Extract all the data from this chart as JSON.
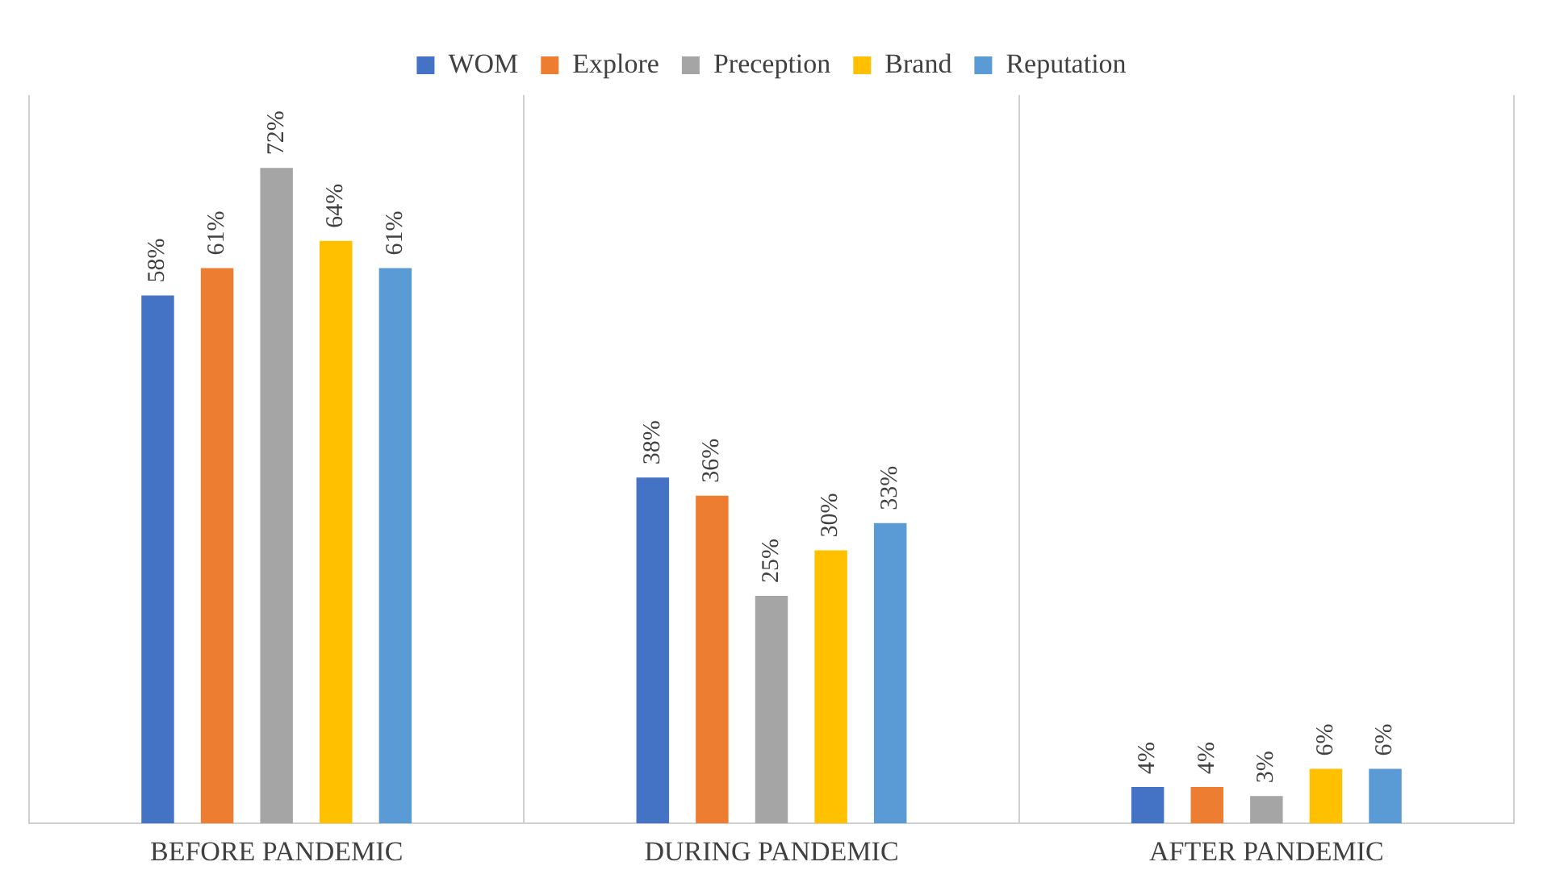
{
  "chart_data": {
    "type": "bar",
    "categories": [
      "BEFORE PANDEMIC",
      "DURING PANDEMIC",
      "AFTER PANDEMIC"
    ],
    "series": [
      {
        "name": "WOM",
        "color": "#4472c4",
        "values": [
          58,
          38,
          4
        ],
        "value_labels": [
          "58%",
          "38%",
          "4%"
        ]
      },
      {
        "name": "Explore",
        "color": "#ed7d31",
        "values": [
          61,
          36,
          4
        ],
        "value_labels": [
          "61%",
          "36%",
          "4%"
        ]
      },
      {
        "name": "Preception",
        "color": "#a5a5a5",
        "values": [
          72,
          25,
          3
        ],
        "value_labels": [
          "72%",
          "25%",
          "3%"
        ]
      },
      {
        "name": "Brand",
        "color": "#ffc000",
        "values": [
          64,
          30,
          6
        ],
        "value_labels": [
          "64%",
          "30%",
          "6%"
        ]
      },
      {
        "name": "Reputation",
        "color": "#5b9bd5",
        "values": [
          61,
          33,
          6
        ],
        "value_labels": [
          "61%",
          "33%",
          "6%"
        ]
      }
    ],
    "grid": "x",
    "legend": "top",
    "tick_labels": "x"
  }
}
